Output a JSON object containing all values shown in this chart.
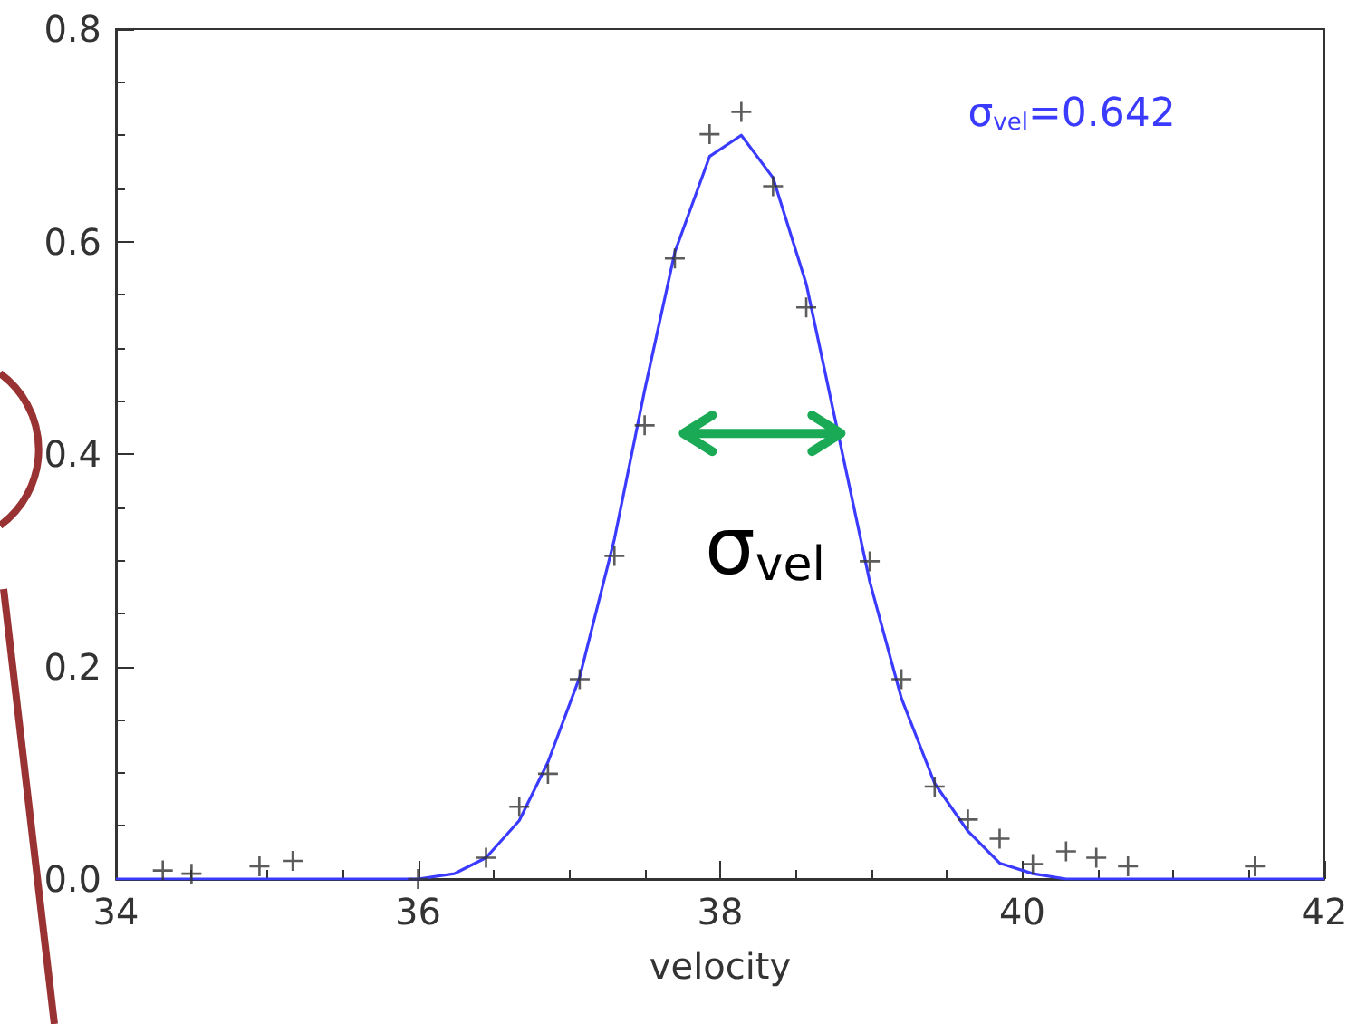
{
  "chart_data": {
    "type": "scatter",
    "xlabel": "velocity",
    "xlim": [
      34,
      42
    ],
    "xticks": [
      34,
      36,
      38,
      40,
      42
    ],
    "ylim": [
      0,
      0.8
    ],
    "yticks": [
      {
        "value": 0,
        "label": "0.0"
      },
      {
        "value": 0.2,
        "label": "0.2"
      },
      {
        "value": 0.4,
        "label": "0.4"
      },
      {
        "value": 0.6,
        "label": "0.6"
      },
      {
        "value": 0.8,
        "label": "0.8"
      }
    ],
    "grid": false,
    "series": [
      {
        "marker": "cross",
        "color": "#333333",
        "x": [
          34.31,
          34.5,
          34.95,
          35.17,
          36.0,
          36.45,
          36.67,
          36.86,
          37.07,
          37.3,
          37.5,
          37.7,
          37.93,
          38.14,
          38.35,
          38.57,
          38.99,
          39.2,
          39.42,
          39.64,
          39.85,
          40.07,
          40.29,
          40.49,
          40.7,
          41.54
        ],
        "values": [
          0.008,
          0.005,
          0.012,
          0.017,
          0.0,
          0.02,
          0.068,
          0.099,
          0.188,
          0.304,
          0.427,
          0.584,
          0.701,
          0.722,
          0.652,
          0.538,
          0.299,
          0.188,
          0.087,
          0.056,
          0.038,
          0.014,
          0.026,
          0.02,
          0.012,
          0.012
        ]
      },
      {
        "type": "line",
        "marker": "none",
        "line_style": "solid",
        "color": "#3b3bff",
        "x": [
          34,
          36.0,
          36.24,
          36.45,
          36.67,
          36.86,
          37.07,
          37.3,
          37.5,
          37.7,
          37.93,
          38.14,
          38.35,
          38.57,
          38.78,
          38.99,
          39.2,
          39.42,
          39.64,
          39.85,
          40.07,
          40.29,
          42
        ],
        "values": [
          0,
          0.0,
          0.005,
          0.02,
          0.055,
          0.11,
          0.19,
          0.32,
          0.46,
          0.59,
          0.68,
          0.7,
          0.66,
          0.56,
          0.42,
          0.28,
          0.17,
          0.09,
          0.045,
          0.015,
          0.005,
          0,
          0
        ]
      }
    ],
    "annotations": [
      "σ$_{vel}$=0.642",
      "σ$_{vel}$"
    ]
  }
}
